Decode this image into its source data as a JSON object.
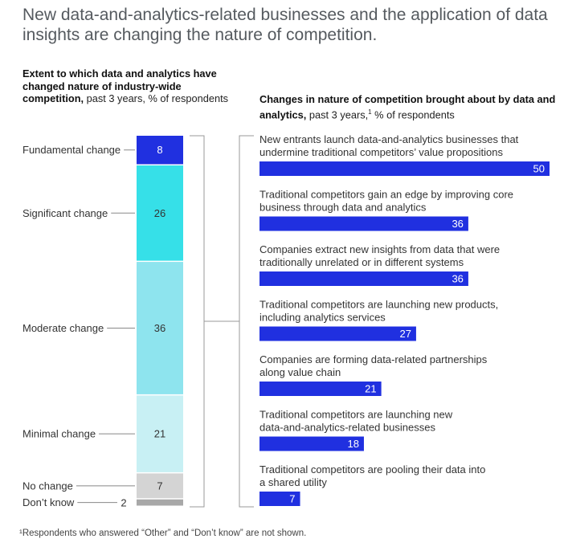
{
  "title": "New data-and-analytics-related businesses and the application of data insights are changing the nature of competition.",
  "left_heading": {
    "bold": "Extent to which data and analytics have changed nature of industry-wide competition,",
    "normal": " past 3 years, % of respondents"
  },
  "right_heading": {
    "bold": "Changes in nature of competition brought about by data and analytics,",
    "normal_pre": " past 3 years,",
    "sup": "1",
    "normal_post": " % of respondents"
  },
  "footnote": "¹Respondents who answered “Other” and “Don’t know” are not shown.",
  "colors": {
    "fundamental": "#2030e0",
    "significant": "#36e0e8",
    "moderate": "#8ee4ee",
    "minimal": "#c8f0f4",
    "no_change": "#d4d4d4",
    "dont_know": "#a8a8a8",
    "bar": "#2030e0",
    "bracket": "#999999"
  },
  "chart_data": [
    {
      "type": "bar",
      "stacked": true,
      "title": "Extent to which data and analytics have changed nature of industry-wide competition, past 3 years, % of respondents",
      "categories": [
        "Fundamental change",
        "Significant change",
        "Moderate change",
        "Minimal change",
        "No change",
        "Don’t know"
      ],
      "values": [
        8,
        26,
        36,
        21,
        7,
        2
      ],
      "value_labels": [
        "8",
        "26",
        "36",
        "21",
        "7",
        "2"
      ]
    },
    {
      "type": "bar",
      "orientation": "horizontal",
      "title": "Changes in nature of competition brought about by data and analytics, past 3 years, % of respondents",
      "categories": [
        "New entrants launch data-and-analytics businesses that undermine traditional competitors’ value propositions",
        "Traditional competitors gain an edge by improving core business through data and analytics",
        "Companies extract new insights from data that were traditionally unrelated or in different systems",
        "Traditional competitors are launching new products, including analytics services",
        "Companies are forming data-related partnerships along value chain",
        "Traditional competitors are launching new data-and-analytics-related businesses",
        "Traditional competitors are pooling their data into a shared utility"
      ],
      "category_lines": [
        [
          "New entrants launch data-and-analytics businesses that",
          "undermine traditional competitors’ value propositions"
        ],
        [
          "Traditional competitors gain an edge by improving core",
          "business through data and analytics"
        ],
        [
          "Companies extract new insights from data that were",
          "traditionally unrelated or in different systems"
        ],
        [
          "Traditional competitors are launching new products,",
          "including analytics services"
        ],
        [
          "Companies are forming data-related partnerships",
          "along value chain"
        ],
        [
          "Traditional competitors are launching new",
          "data-and-analytics-related businesses"
        ],
        [
          "Traditional competitors are pooling their data into",
          "a shared utility"
        ]
      ],
      "values": [
        50,
        36,
        36,
        27,
        21,
        18,
        7
      ],
      "value_labels": [
        "50",
        "36",
        "36",
        "27",
        "21",
        "18",
        "7"
      ],
      "xlim": [
        0,
        50
      ]
    }
  ]
}
